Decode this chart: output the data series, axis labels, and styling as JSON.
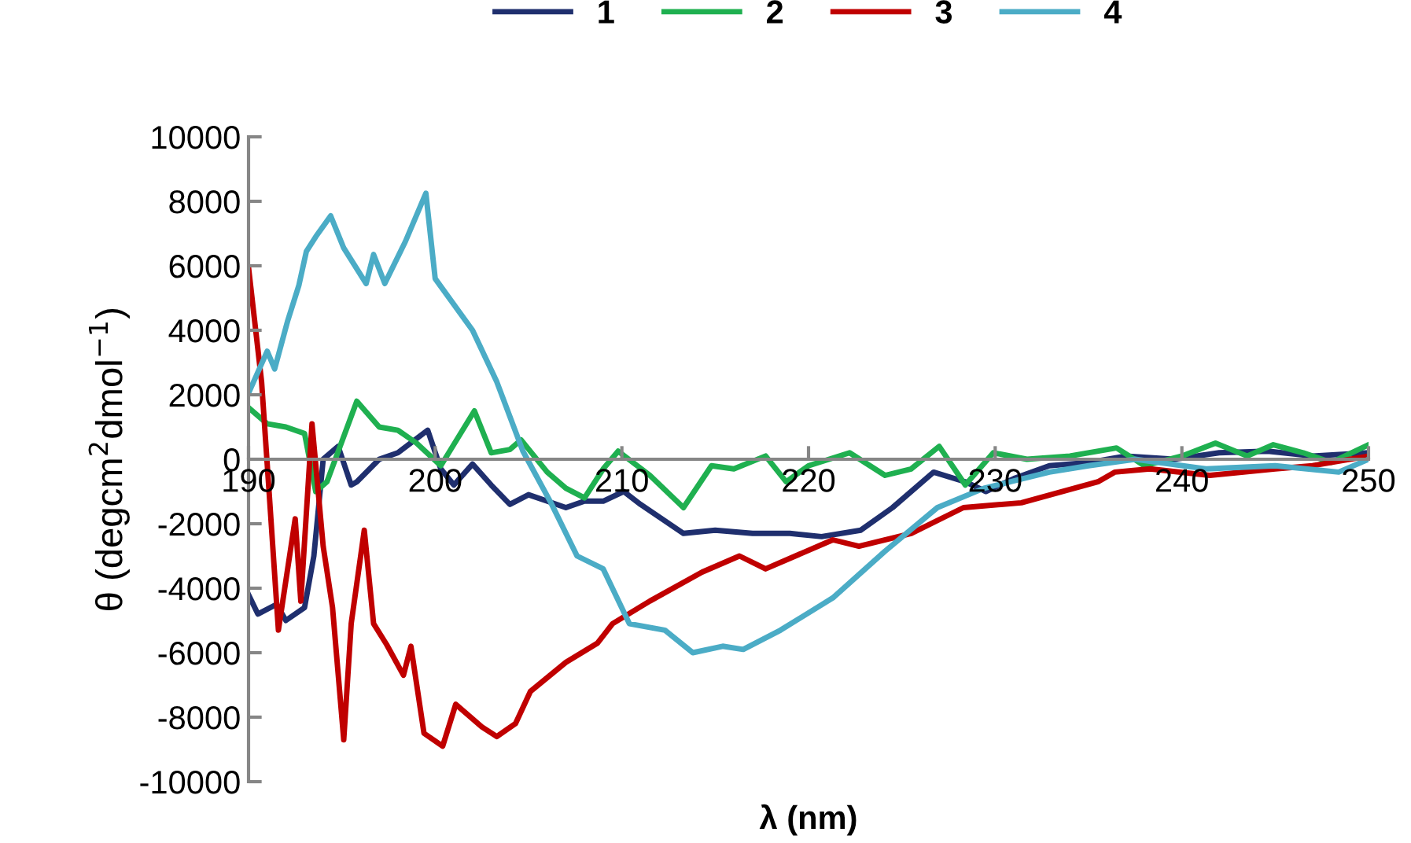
{
  "chart_data": {
    "type": "line",
    "xlabel": "λ (nm)",
    "ylabel": "θ (degcm$^{2}$dmol$^{−1}$)",
    "xlim": [
      190,
      250
    ],
    "ylim": [
      -10000,
      10000
    ],
    "xticks": [
      190,
      200,
      210,
      220,
      230,
      240,
      250
    ],
    "yticks": [
      -10000,
      -8000,
      -6000,
      -4000,
      -2000,
      0,
      2000,
      4000,
      6000,
      8000,
      10000
    ],
    "grid": false,
    "legend": "top",
    "marker": "none",
    "line_style": "solid",
    "series": [
      {
        "name": "1",
        "color": "#1f2f6e",
        "x": [
          190,
          190.5,
          191.5,
          192,
          193,
          193.5,
          194,
          194.8,
          195.5,
          195.8,
          197,
          198,
          199.6,
          200.3,
          201,
          202,
          203,
          204,
          205,
          206,
          207,
          208,
          209,
          210.1,
          211,
          213.3,
          215,
          217,
          219,
          220.7,
          222.8,
          224.5,
          226.7,
          228.4,
          229.5,
          231,
          232.9,
          235,
          237,
          239.6,
          242,
          244.6,
          247,
          250
        ],
        "values": [
          -4200,
          -4800,
          -4500,
          -5000,
          -4600,
          -3000,
          0,
          400,
          -800,
          -700,
          0,
          200,
          900,
          -300,
          -800,
          -150,
          -800,
          -1400,
          -1100,
          -1300,
          -1500,
          -1300,
          -1300,
          -1000,
          -1400,
          -2300,
          -2200,
          -2300,
          -2300,
          -2400,
          -2200,
          -1500,
          -400,
          -700,
          -1000,
          -600,
          -200,
          -100,
          100,
          0,
          200,
          250,
          100,
          200
        ]
      },
      {
        "name": "2",
        "color": "#1fb050",
        "x": [
          190,
          191,
          192,
          193,
          193.6,
          194.2,
          195.8,
          197,
          198,
          199,
          200.3,
          202.1,
          203,
          204,
          204.6,
          206,
          207,
          208,
          209,
          209.8,
          211.5,
          213.3,
          214.8,
          216,
          217.7,
          218.8,
          220,
          222.2,
          224.1,
          225.5,
          227,
          228.4,
          229.9,
          231.7,
          234,
          236.5,
          238,
          240,
          241.8,
          243.5,
          244.9,
          246.5,
          248,
          250
        ],
        "values": [
          1600,
          1100,
          1000,
          800,
          -1000,
          -700,
          1800,
          1000,
          900,
          500,
          -200,
          1500,
          200,
          300,
          600,
          -400,
          -900,
          -1200,
          -300,
          250,
          -500,
          -1500,
          -200,
          -300,
          100,
          -700,
          -200,
          200,
          -500,
          -300,
          400,
          -800,
          200,
          0,
          100,
          350,
          -200,
          100,
          500,
          100,
          450,
          200,
          -100,
          450
        ]
      },
      {
        "name": "3",
        "color": "#c00000",
        "x": [
          190,
          190.7,
          191.1,
          191.6,
          192.5,
          192.8,
          193.4,
          194,
          194.5,
          195.1,
          195.5,
          196.2,
          196.7,
          197.4,
          198.3,
          198.7,
          199.4,
          200.4,
          201.1,
          202.5,
          203.3,
          204.3,
          205.1,
          207,
          208.7,
          209.5,
          211.5,
          214.3,
          216.3,
          217.7,
          221.3,
          222.7,
          225.5,
          228.3,
          231.4,
          235.5,
          236.4,
          238.3,
          241.5,
          245,
          247,
          250
        ],
        "values": [
          5950,
          2400,
          -1000,
          -5300,
          -1850,
          -4400,
          1100,
          -2700,
          -4600,
          -8700,
          -5100,
          -2200,
          -5100,
          -5750,
          -6700,
          -5800,
          -8500,
          -8900,
          -7600,
          -8300,
          -8600,
          -8200,
          -7200,
          -6300,
          -5700,
          -5100,
          -4400,
          -3500,
          -3000,
          -3400,
          -2500,
          -2700,
          -2300,
          -1500,
          -1350,
          -700,
          -400,
          -300,
          -500,
          -300,
          -200,
          100
        ]
      },
      {
        "name": "4",
        "color": "#4bacc6",
        "x": [
          190,
          191,
          191.4,
          192.1,
          192.7,
          193.1,
          193.6,
          194.4,
          195.1,
          196.3,
          196.7,
          197.3,
          198.4,
          199.5,
          200,
          202,
          203.3,
          204.7,
          206.2,
          207.6,
          209,
          210.4,
          212.3,
          213.8,
          215.4,
          216.5,
          218.5,
          221.3,
          224.1,
          226.9,
          229.4,
          232.9,
          235,
          237.5,
          241.3,
          245,
          248.4,
          250
        ],
        "values": [
          2050,
          3350,
          2800,
          4300,
          5400,
          6450,
          6900,
          7550,
          6550,
          5450,
          6350,
          5450,
          6750,
          8250,
          5600,
          4000,
          2400,
          250,
          -1350,
          -3000,
          -3400,
          -5100,
          -5300,
          -6000,
          -5800,
          -5900,
          -5300,
          -4300,
          -2850,
          -1500,
          -900,
          -400,
          -200,
          0,
          -300,
          -200,
          -400,
          0
        ]
      }
    ]
  }
}
